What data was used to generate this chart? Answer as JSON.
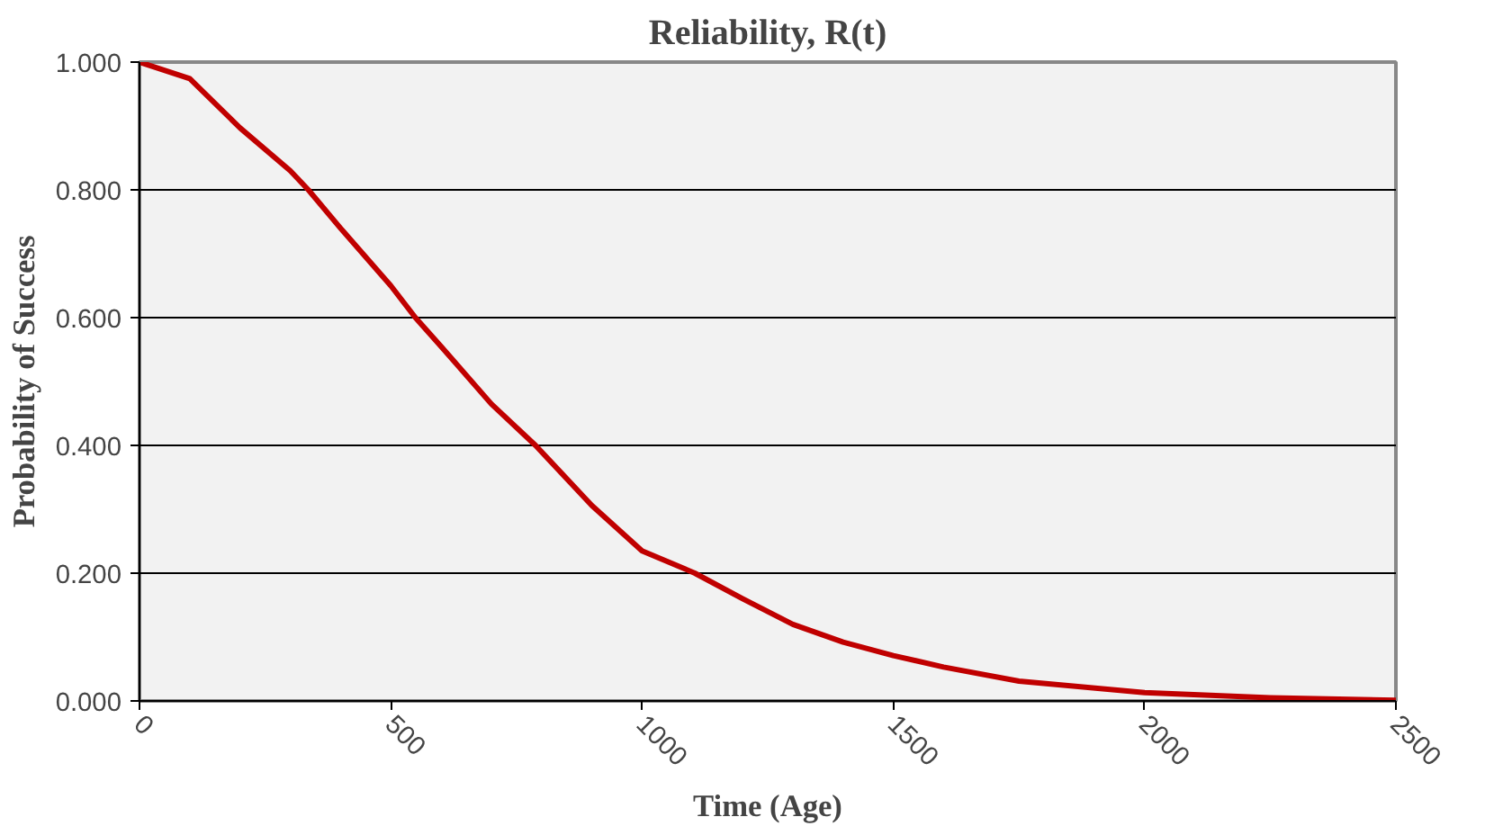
{
  "chart_data": {
    "type": "line",
    "title": "Reliability, R(t)",
    "xlabel": "Time (Age)",
    "ylabel": "Probability of Success",
    "x": [
      0,
      100,
      200,
      300,
      336,
      400,
      500,
      549,
      600,
      700,
      788,
      900,
      1000,
      1105,
      1200,
      1300,
      1400,
      1500,
      1600,
      1750,
      2000,
      2250,
      2500
    ],
    "series": [
      {
        "color": "#c00000",
        "values": [
          1.0,
          0.974,
          0.897,
          0.83,
          0.8,
          0.74,
          0.65,
          0.6,
          0.555,
          0.465,
          0.4,
          0.306,
          0.235,
          0.2,
          0.16,
          0.12,
          0.092,
          0.071,
          0.053,
          0.031,
          0.013,
          0.005,
          0.001
        ]
      }
    ],
    "xlim": [
      0,
      2500
    ],
    "xticks": [
      0,
      500,
      1000,
      1500,
      2000,
      2500
    ],
    "ylim": [
      0,
      1
    ],
    "yticks": [
      {
        "value": 0,
        "label": "0.000"
      },
      {
        "value": 0.2,
        "label": "0.200"
      },
      {
        "value": 0.4,
        "label": "0.400"
      },
      {
        "value": 0.6,
        "label": "0.600"
      },
      {
        "value": 0.8,
        "label": "0.800"
      },
      {
        "value": 1,
        "label": "1.000"
      }
    ],
    "grid": "y",
    "line_style": "solid",
    "marker": "none"
  }
}
